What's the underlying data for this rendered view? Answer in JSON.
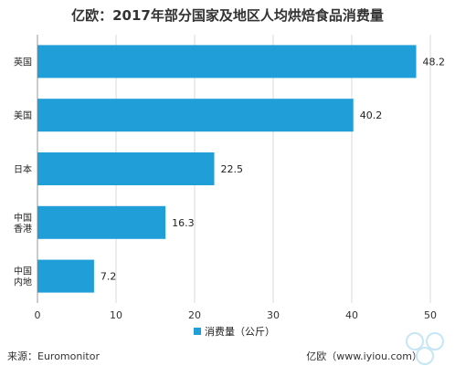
{
  "title": "亿欧：2017年部分国家及地区人均烘焙食品消费量",
  "source": "来源：Euromonitor",
  "credit": "亿欧（www.iyiou.com）",
  "colors": {
    "bar": "#1f9ed8",
    "grid": "#d9d9d9",
    "axis": "#999999"
  },
  "chart_data": {
    "type": "bar",
    "orientation": "horizontal",
    "categories": [
      [
        "英国"
      ],
      [
        "美国"
      ],
      [
        "日本"
      ],
      [
        "中国",
        "香港"
      ],
      [
        "中国",
        "内地"
      ]
    ],
    "series": [
      {
        "name": "消费量（公斤）",
        "values": [
          48.2,
          40.2,
          22.5,
          16.3,
          7.2
        ]
      }
    ],
    "xlim": [
      0,
      50
    ],
    "xticks": [
      0,
      10,
      20,
      30,
      40,
      50
    ],
    "grid": true,
    "legend_position": "bottom"
  }
}
